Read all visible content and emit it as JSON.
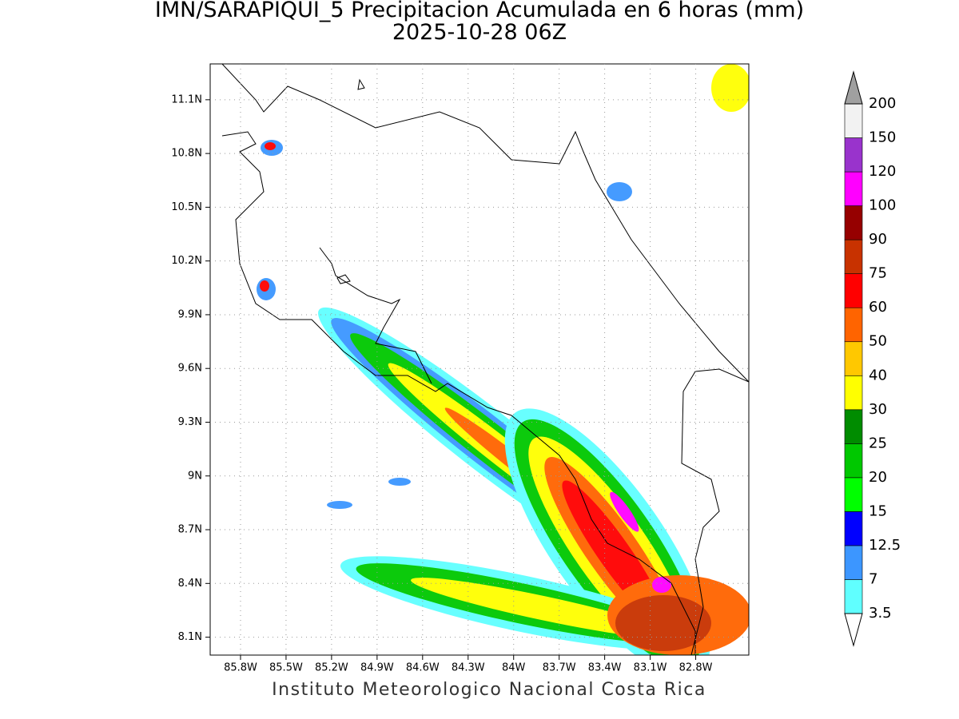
{
  "header": {
    "title": "IMN/SARAPIQUI_5 Precipitacion Acumulada en 6 horas (mm)",
    "subtitle": "2025-10-28 06Z"
  },
  "map": {
    "xlim": [
      -86.0,
      -82.45
    ],
    "ylim": [
      8.0,
      11.3
    ],
    "xticks": [
      {
        "value": -85.8,
        "label": "85.8W"
      },
      {
        "value": -85.5,
        "label": "85.5W"
      },
      {
        "value": -85.2,
        "label": "85.2W"
      },
      {
        "value": -84.9,
        "label": "84.9W"
      },
      {
        "value": -84.6,
        "label": "84.6W"
      },
      {
        "value": -84.3,
        "label": "84.3W"
      },
      {
        "value": -84.0,
        "label": "84W"
      },
      {
        "value": -83.7,
        "label": "83.7W"
      },
      {
        "value": -83.4,
        "label": "83.4W"
      },
      {
        "value": -83.1,
        "label": "83.1W"
      },
      {
        "value": -82.8,
        "label": "82.8W"
      }
    ],
    "yticks": [
      {
        "value": 8.1,
        "label": "8.1N"
      },
      {
        "value": 8.4,
        "label": "8.4N"
      },
      {
        "value": 8.7,
        "label": "8.7N"
      },
      {
        "value": 9.0,
        "label": "9N"
      },
      {
        "value": 9.3,
        "label": "9.3N"
      },
      {
        "value": 9.6,
        "label": "9.6N"
      },
      {
        "value": 9.9,
        "label": "9.9N"
      },
      {
        "value": 10.2,
        "label": "10.2N"
      },
      {
        "value": 10.5,
        "label": "10.5N"
      },
      {
        "value": 10.8,
        "label": "10.8N"
      },
      {
        "value": 11.1,
        "label": "11.1N"
      }
    ],
    "grid": true
  },
  "colorbar": {
    "levels": [
      3.5,
      7,
      12.5,
      15,
      20,
      25,
      30,
      40,
      50,
      60,
      75,
      90,
      100,
      120,
      150,
      200
    ],
    "colors": [
      "#60ffff",
      "#3c96ff",
      "#0000ff",
      "#00ff00",
      "#00c800",
      "#008c00",
      "#ffff00",
      "#ffc800",
      "#ff6400",
      "#ff0000",
      "#c83200",
      "#960000",
      "#ff00ff",
      "#9933cc",
      "#f2f2f2"
    ],
    "under_color": "#ffffff",
    "over_color": "#a0a0a0"
  },
  "footer": "Instituto Meteorologico Nacional Costa Rica"
}
